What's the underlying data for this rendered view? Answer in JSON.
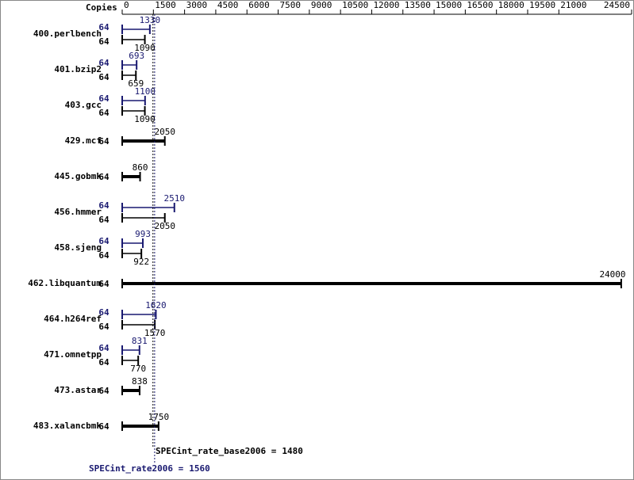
{
  "chart_data": {
    "type": "bar",
    "orientation": "horizontal",
    "copies_label": "Copies",
    "categories": [
      "400.perlbench",
      "401.bzip2",
      "403.gcc",
      "429.mcf",
      "445.gobmk",
      "456.hmmer",
      "458.sjeng",
      "462.libquantum",
      "464.h264ref",
      "471.omnetpp",
      "473.astar",
      "483.xalancbmk"
    ],
    "series": [
      {
        "color": "#191970",
        "values": [
          1330,
          693,
          1100,
          null,
          null,
          2510,
          993,
          null,
          1620,
          831,
          null,
          null
        ],
        "copies": [
          64,
          64,
          64,
          null,
          null,
          64,
          64,
          null,
          64,
          64,
          null,
          null
        ]
      },
      {
        "color": "#000000",
        "values": [
          1090,
          659,
          1090,
          2050,
          860,
          2050,
          922,
          24000,
          1570,
          770,
          838,
          1750
        ],
        "copies": [
          64,
          64,
          64,
          64,
          64,
          64,
          64,
          64,
          64,
          64,
          64,
          64
        ]
      }
    ],
    "xlim": [
      0,
      24500
    ],
    "xticks": [
      0,
      1500,
      3000,
      4500,
      6000,
      7500,
      9000,
      10500,
      12000,
      13500,
      15000,
      16500,
      18000,
      19500,
      21000,
      24500
    ],
    "references": [
      {
        "label": "SPECint_rate_base2006 =",
        "value": 1480,
        "color": "#000000"
      },
      {
        "label": "SPECint_rate2006 =",
        "value": 1560,
        "color": "#191970"
      }
    ]
  }
}
